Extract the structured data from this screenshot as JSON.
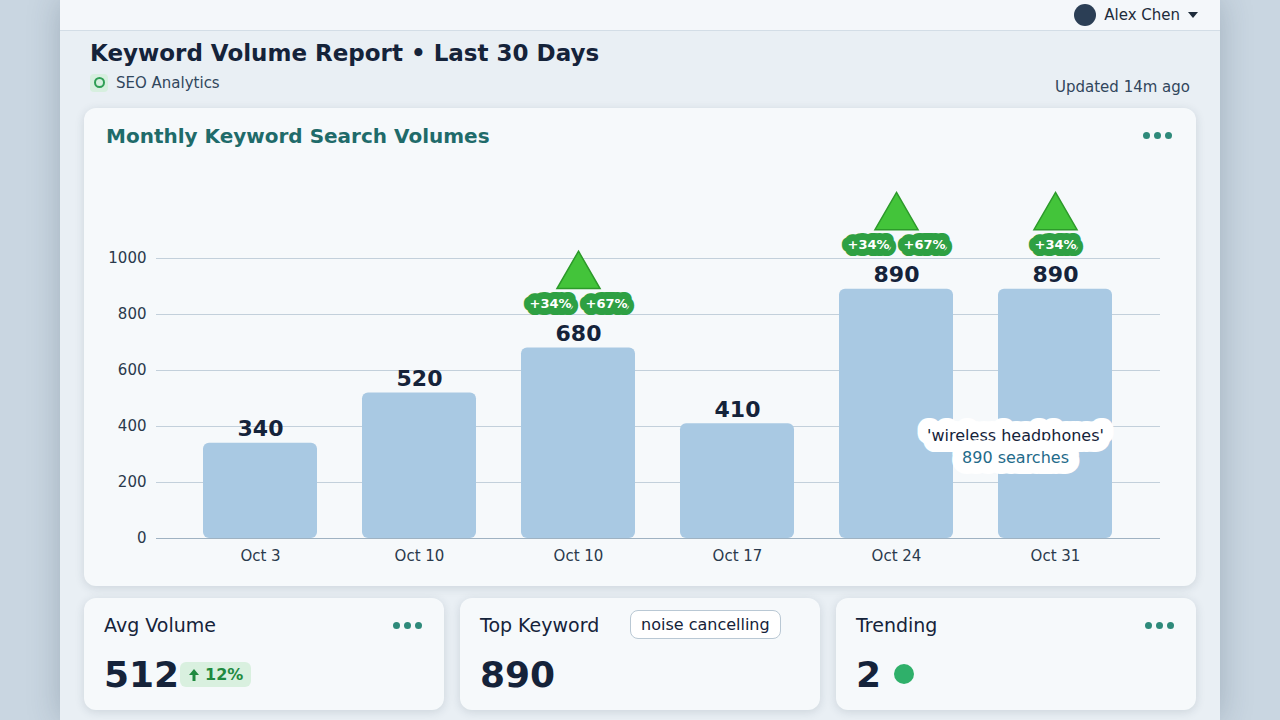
{
  "header": {
    "title": "Keyword Volume Report • Last 30 Days",
    "subtitle": "SEO Analytics",
    "updated": "Updated 14m ago",
    "user": "Alex Chen"
  },
  "chart_data": {
    "type": "bar",
    "title": "Monthly Keyword Search Volumes",
    "categories": [
      "Oct 3",
      "Oct 10",
      "Oct 10",
      "Oct 17",
      "Oct 24",
      "Oct 31"
    ],
    "values": [
      340,
      520,
      680,
      410,
      890,
      890
    ],
    "color": "#a9c9e3",
    "ylim": [
      0,
      1000
    ],
    "yticks": [
      0,
      200,
      400,
      600,
      800,
      1000
    ],
    "grid": true,
    "data_labels": true,
    "badges": [
      null,
      null,
      [
        "+34%",
        "+67%"
      ],
      null,
      [
        "+34%",
        "+67%"
      ],
      [
        "+34%"
      ]
    ],
    "tooltip": {
      "keyword": "'wireless headphones'",
      "text": "890 searches"
    }
  },
  "cards": [
    {
      "title": "Avg Volume",
      "value": 512,
      "change": "12%"
    },
    {
      "title": "Top Keyword",
      "value": 890,
      "keyword": "noise cancelling"
    },
    {
      "title": "Trending",
      "value": 2
    }
  ]
}
